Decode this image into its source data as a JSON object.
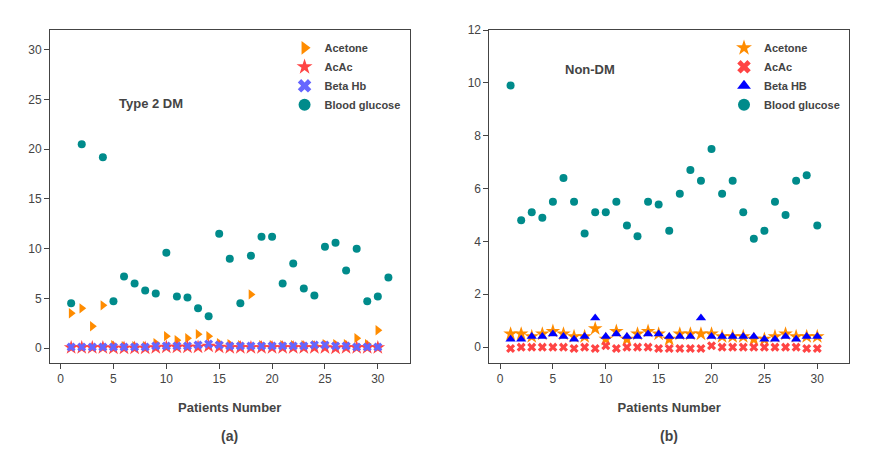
{
  "chart_data": [
    {
      "type": "scatter",
      "title": "Type 2 DM",
      "xlabel": "Patients Number",
      "annotations": [
        "(a)"
      ],
      "xlim": [
        -1,
        33
      ],
      "xticks": [
        0,
        5,
        10,
        15,
        20,
        25,
        30
      ],
      "ylim": [
        -1.5,
        32
      ],
      "yticks": [
        0,
        5,
        10,
        15,
        20,
        25,
        30
      ],
      "grid": false,
      "legend": "upper right",
      "series": [
        {
          "name": "Acetone",
          "color": "#FF8C00",
          "marker": "triangle-right",
          "x": [
            1,
            2,
            3,
            4,
            5,
            6,
            7,
            8,
            9,
            10,
            11,
            12,
            13,
            14,
            15,
            16,
            17,
            18,
            19,
            20,
            21,
            22,
            23,
            24,
            25,
            26,
            27,
            28,
            29,
            30
          ],
          "values": [
            3.5,
            4.0,
            2.2,
            4.3,
            0.3,
            0.2,
            0.2,
            0.2,
            0.5,
            1.2,
            0.8,
            1.0,
            1.4,
            1.2,
            0.5,
            0.4,
            0.3,
            5.4,
            0.3,
            0.3,
            0.3,
            0.3,
            0.3,
            0.3,
            0.4,
            0.4,
            0.4,
            1.0,
            0.4,
            1.8
          ]
        },
        {
          "name": "AcAc",
          "color": "#FF4444",
          "marker": "star",
          "x": [
            1,
            2,
            3,
            4,
            5,
            6,
            7,
            8,
            9,
            10,
            11,
            12,
            13,
            14,
            15,
            16,
            17,
            18,
            19,
            20,
            21,
            22,
            23,
            24,
            25,
            26,
            27,
            28,
            29,
            30
          ],
          "values": [
            0.05,
            0.05,
            0.05,
            0.05,
            0.0,
            0.0,
            0.0,
            0.0,
            0.05,
            0.1,
            0.1,
            0.1,
            0.1,
            0.2,
            0.1,
            0.05,
            0.05,
            0.05,
            0.05,
            0.05,
            0.05,
            0.05,
            0.05,
            0.05,
            0.05,
            0.0,
            0.05,
            0.05,
            0.05,
            0.05
          ]
        },
        {
          "name": "Beta Hb",
          "color": "#6666FF",
          "marker": "x",
          "x": [
            1,
            2,
            3,
            4,
            5,
            6,
            7,
            8,
            9,
            10,
            11,
            12,
            13,
            14,
            15,
            16,
            17,
            18,
            19,
            20,
            21,
            22,
            23,
            24,
            25,
            26,
            27,
            28,
            29,
            30
          ],
          "values": [
            0.1,
            0.1,
            0.1,
            0.1,
            0.1,
            0.1,
            0.1,
            0.1,
            0.2,
            0.2,
            0.2,
            0.2,
            0.3,
            0.4,
            0.3,
            0.2,
            0.2,
            0.2,
            0.2,
            0.2,
            0.2,
            0.2,
            0.2,
            0.3,
            0.3,
            0.2,
            0.2,
            0.1,
            0.1,
            0.1
          ]
        },
        {
          "name": "Blood glucose",
          "color": "#008B8B",
          "marker": "circle",
          "x": [
            1,
            2,
            4,
            5,
            6,
            7,
            8,
            9,
            10,
            11,
            12,
            13,
            14,
            15,
            16,
            17,
            18,
            19,
            20,
            21,
            22,
            23,
            24,
            25,
            26,
            27,
            28,
            29,
            30,
            31
          ],
          "values": [
            4.5,
            20.5,
            19.2,
            4.7,
            7.2,
            6.5,
            5.8,
            5.5,
            9.6,
            5.2,
            5.1,
            4.0,
            3.2,
            11.5,
            9.0,
            4.5,
            9.3,
            11.2,
            11.2,
            6.5,
            8.5,
            6.0,
            5.3,
            10.2,
            10.6,
            7.8,
            10.0,
            4.7,
            5.2,
            7.1
          ]
        }
      ]
    },
    {
      "type": "scatter",
      "title": "Non-DM",
      "xlabel": "Patients Number",
      "annotations": [
        "(b)"
      ],
      "xlim": [
        -1,
        33
      ],
      "xticks": [
        0,
        5,
        10,
        15,
        20,
        25,
        30
      ],
      "ylim": [
        -0.6,
        12
      ],
      "yticks": [
        0,
        2,
        4,
        6,
        8,
        10,
        12
      ],
      "grid": false,
      "legend": "upper right",
      "series": [
        {
          "name": "Acetone",
          "color": "#FF8C00",
          "marker": "star",
          "x": [
            1,
            2,
            3,
            4,
            5,
            6,
            7,
            8,
            9,
            10,
            11,
            12,
            13,
            14,
            15,
            16,
            17,
            18,
            19,
            20,
            21,
            22,
            23,
            24,
            25,
            26,
            27,
            28,
            29,
            30
          ],
          "values": [
            0.5,
            0.5,
            0.4,
            0.5,
            0.6,
            0.5,
            0.4,
            0.4,
            0.7,
            0.3,
            0.6,
            0.3,
            0.5,
            0.6,
            0.5,
            0.3,
            0.5,
            0.5,
            0.5,
            0.5,
            0.4,
            0.4,
            0.4,
            0.3,
            0.3,
            0.4,
            0.5,
            0.4,
            0.4,
            0.4
          ]
        },
        {
          "name": "AcAc",
          "color": "#FF4444",
          "marker": "x",
          "x": [
            1,
            2,
            3,
            4,
            5,
            6,
            7,
            8,
            9,
            10,
            11,
            12,
            13,
            14,
            15,
            16,
            17,
            18,
            19,
            20,
            21,
            22,
            23,
            24,
            25,
            26,
            27,
            28,
            29,
            30
          ],
          "values": [
            -0.05,
            0.0,
            0.0,
            0.0,
            0.0,
            0.0,
            -0.05,
            0.0,
            -0.05,
            0.05,
            -0.05,
            0.0,
            0.0,
            0.0,
            -0.05,
            -0.05,
            -0.05,
            -0.05,
            -0.05,
            0.05,
            0.0,
            0.0,
            0.0,
            0.0,
            0.0,
            0.0,
            0.0,
            0.0,
            -0.05,
            -0.05
          ]
        },
        {
          "name": "Beta HB",
          "color": "#0000FF",
          "marker": "triangle-up",
          "x": [
            1,
            2,
            3,
            4,
            5,
            6,
            7,
            8,
            9,
            10,
            11,
            12,
            13,
            14,
            15,
            16,
            17,
            18,
            19,
            20,
            21,
            22,
            23,
            24,
            25,
            26,
            27,
            28,
            29,
            30
          ],
          "values": [
            0.3,
            0.3,
            0.4,
            0.4,
            0.5,
            0.4,
            0.3,
            0.4,
            1.1,
            0.4,
            0.5,
            0.4,
            0.4,
            0.5,
            0.5,
            0.4,
            0.4,
            0.4,
            1.1,
            0.4,
            0.4,
            0.4,
            0.4,
            0.4,
            0.3,
            0.3,
            0.4,
            0.3,
            0.4,
            0.4
          ]
        },
        {
          "name": "Blood glucose",
          "color": "#008B8B",
          "marker": "circle",
          "x": [
            1,
            2,
            3,
            4,
            5,
            6,
            7,
            8,
            9,
            10,
            11,
            12,
            13,
            14,
            15,
            16,
            17,
            18,
            19,
            20,
            21,
            22,
            23,
            24,
            25,
            26,
            27,
            28,
            29,
            30
          ],
          "values": [
            9.9,
            4.8,
            5.1,
            4.9,
            5.5,
            6.4,
            5.5,
            4.3,
            5.1,
            5.1,
            5.5,
            4.6,
            4.2,
            5.5,
            5.4,
            4.4,
            5.8,
            6.7,
            6.3,
            7.5,
            5.8,
            6.3,
            5.1,
            4.1,
            4.4,
            5.5,
            5.0,
            6.3,
            6.5,
            4.6
          ]
        }
      ]
    }
  ]
}
